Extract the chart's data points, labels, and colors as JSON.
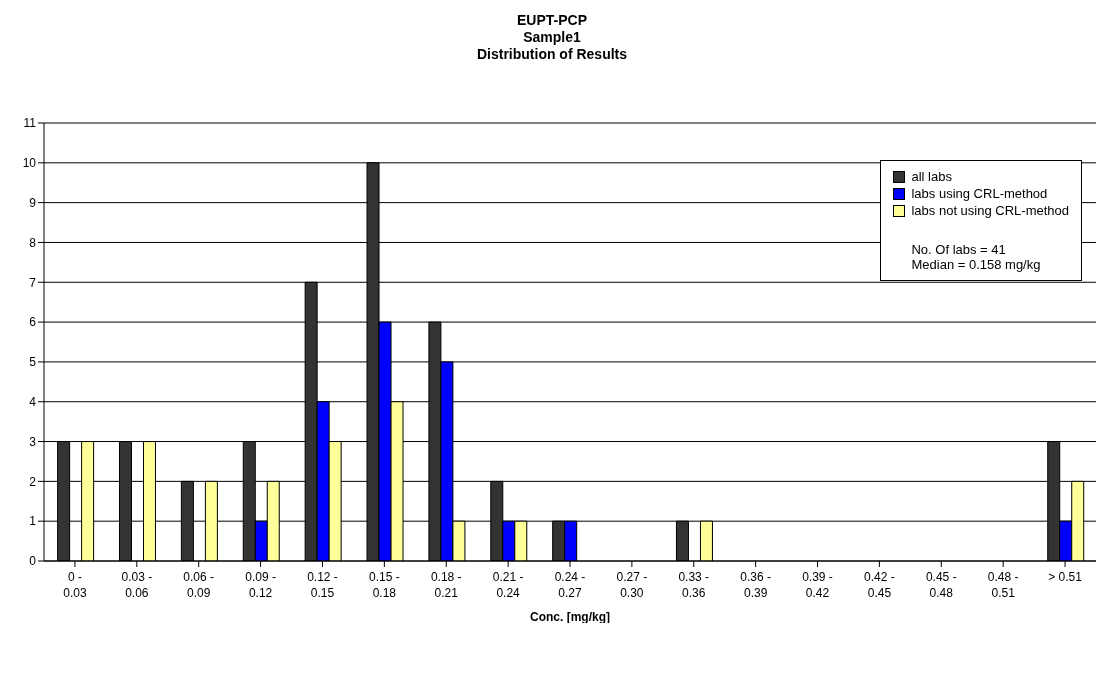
{
  "chart_data": {
    "type": "bar",
    "title": "EUPT-PCP\nSample1\nDistribution of Results",
    "xlabel": "Conc. [mg/kg]",
    "categories": [
      "0 - 0.03",
      "0.03 - 0.06",
      "0.06 - 0.09",
      "0.09 - 0.12",
      "0.12 - 0.15",
      "0.15 - 0.18",
      "0.18 - 0.21",
      "0.21 - 0.24",
      "0.24 - 0.27",
      "0.27 - 0.30",
      "0.33 - 0.36",
      "0.36 - 0.39",
      "0.39 - 0.42",
      "0.42 - 0.45",
      "0.45 - 0.48",
      "0.48 - 0.51",
      "> 0.51"
    ],
    "series": [
      {
        "name": "all labs",
        "color": "#333333",
        "values": [
          3,
          3,
          2,
          3,
          7,
          10,
          6,
          2,
          1,
          0,
          1,
          0,
          0,
          0,
          0,
          0,
          3
        ]
      },
      {
        "name": "labs using CRL-method",
        "color": "#0000ff",
        "values": [
          0,
          0,
          0,
          1,
          4,
          6,
          5,
          1,
          1,
          0,
          0,
          0,
          0,
          0,
          0,
          0,
          1
        ]
      },
      {
        "name": "labs not using CRL-method",
        "color": "#ffff99",
        "values": [
          3,
          3,
          2,
          2,
          3,
          4,
          1,
          1,
          0,
          0,
          1,
          0,
          0,
          0,
          0,
          0,
          2
        ]
      }
    ],
    "ylim": [
      0,
      11
    ],
    "yticks": [
      0,
      1,
      2,
      3,
      4,
      5,
      6,
      7,
      8,
      9,
      10,
      11
    ],
    "grid": "y",
    "legend": "top right",
    "annotations": [
      "No. Of labs = 41",
      "Median = 0.158 mg/kg"
    ]
  }
}
